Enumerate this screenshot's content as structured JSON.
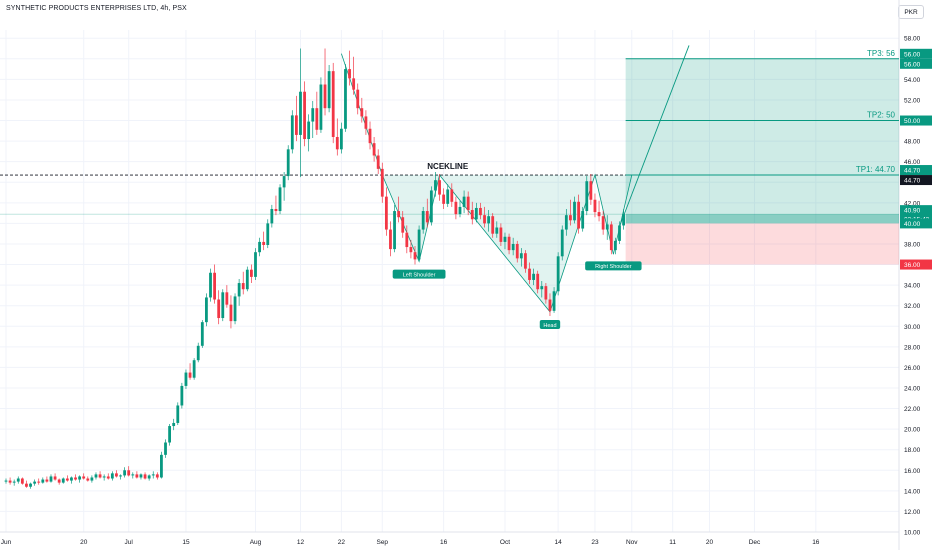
{
  "header": {
    "title": "SYNTHETIC PRODUCTS ENTERPRISES LTD, 4h, PSX",
    "currency": "PKR"
  },
  "chart_data": {
    "type": "candlestick",
    "y_ticks": [
      "58.00",
      "56.00",
      "54.00",
      "52.00",
      "50.00",
      "48.00",
      "46.00",
      "44.00",
      "42.00",
      "40.00",
      "38.00",
      "36.00",
      "34.00",
      "32.00",
      "30.00",
      "28.00",
      "26.00",
      "24.00",
      "22.00",
      "20.00",
      "18.00",
      "16.00",
      "14.00",
      "12.00",
      "10.00"
    ],
    "ylim": [
      10,
      58.8
    ],
    "x_ticks": [
      {
        "label": "Jun",
        "day": 0
      },
      {
        "label": "20",
        "day": 19
      },
      {
        "label": "Jul",
        "day": 30
      },
      {
        "label": "15",
        "day": 44
      },
      {
        "label": "Aug",
        "day": 61
      },
      {
        "label": "12",
        "day": 72
      },
      {
        "label": "22",
        "day": 82
      },
      {
        "label": "Sep",
        "day": 92
      },
      {
        "label": "16",
        "day": 107
      },
      {
        "label": "Oct",
        "day": 122
      },
      {
        "label": "14",
        "day": 135
      },
      {
        "label": "23",
        "day": 144
      },
      {
        "label": "Nov",
        "day": 153
      },
      {
        "label": "11",
        "day": 163
      },
      {
        "label": "20",
        "day": 172
      },
      {
        "label": "Dec",
        "day": 183
      },
      {
        "label": "16",
        "day": 198
      }
    ],
    "price_labels": [
      {
        "value": 56.0,
        "text": "56.00",
        "color": "#089981",
        "offset": -5
      },
      {
        "value": 56.0,
        "text": "56.00",
        "color": "#089981",
        "offset": 5
      },
      {
        "value": 50.0,
        "text": "50.00",
        "color": "#089981",
        "offset": 0
      },
      {
        "value": 44.7,
        "text": "44.70",
        "color": "#089981",
        "offset": -5
      },
      {
        "value": 44.7,
        "text": "44.70",
        "color": "#131722",
        "offset": 5
      },
      {
        "value": 40.9,
        "text": "40.90",
        "color": "#089981",
        "offset": -4
      },
      {
        "value": 40.9,
        "text": "03:15:43",
        "color": "#089981",
        "offset": 5
      },
      {
        "value": 40.0,
        "text": "40.00",
        "color": "#089981",
        "offset": 0
      },
      {
        "value": 36.0,
        "text": "36.00",
        "color": "#f23645",
        "offset": 0
      }
    ],
    "targets": [
      {
        "label": "TP3: 56",
        "value": 56
      },
      {
        "label": "TP2: 50",
        "value": 50
      },
      {
        "label": "TP1: 44.70",
        "value": 44.7
      }
    ],
    "neckline": {
      "label": "NCEKLINE",
      "value": 44.7
    },
    "pattern_labels": [
      {
        "text": "Left Shoulder",
        "day": 101,
        "value": 35.9
      },
      {
        "text": "Head",
        "day": 133,
        "value": 31.0
      },
      {
        "text": "Right Shoulder",
        "day": 148.5,
        "value": 36.7
      }
    ],
    "pattern_path": [
      [
        92,
        44.7
      ],
      [
        101,
        36.3
      ],
      [
        106,
        44.7
      ],
      [
        133,
        31.4
      ],
      [
        144,
        44.7
      ],
      [
        148.5,
        37.0
      ],
      [
        153,
        44.7
      ]
    ],
    "projection": [
      [
        150,
        39.7
      ],
      [
        167,
        57.3
      ]
    ],
    "position": {
      "entry": 40.0,
      "target": 56.0,
      "stop": 36.0,
      "start_day": 151.5,
      "end_day": 225
    },
    "last_price": 40.9,
    "candles": [
      [
        0,
        14.9,
        15.2,
        14.7,
        15.0
      ],
      [
        1,
        15.0,
        15.3,
        14.6,
        14.8
      ],
      [
        2,
        14.8,
        15.1,
        14.5,
        14.9
      ],
      [
        3,
        14.9,
        15.4,
        14.7,
        15.2
      ],
      [
        4,
        15.2,
        15.3,
        14.6,
        14.7
      ],
      [
        5,
        14.7,
        15.0,
        14.3,
        14.4
      ],
      [
        6,
        14.4,
        14.8,
        14.2,
        14.7
      ],
      [
        7,
        14.7,
        15.1,
        14.5,
        14.9
      ],
      [
        8,
        14.9,
        15.2,
        14.6,
        14.8
      ],
      [
        9,
        14.8,
        15.3,
        14.7,
        15.1
      ],
      [
        10,
        15.1,
        15.4,
        14.8,
        14.9
      ],
      [
        11,
        14.9,
        15.6,
        14.8,
        15.4
      ],
      [
        12,
        15.4,
        15.7,
        15.0,
        15.1
      ],
      [
        13,
        15.1,
        15.2,
        14.6,
        14.8
      ],
      [
        14,
        14.8,
        15.3,
        14.7,
        15.2
      ],
      [
        15,
        15.2,
        15.5,
        14.9,
        15.0
      ],
      [
        16,
        15.0,
        15.4,
        14.7,
        15.3
      ],
      [
        17,
        15.3,
        15.6,
        15.0,
        15.1
      ],
      [
        18,
        15.1,
        15.5,
        14.8,
        15.4
      ],
      [
        19,
        15.4,
        15.7,
        15.1,
        15.2
      ],
      [
        20,
        15.2,
        15.4,
        14.9,
        15.0
      ],
      [
        21,
        15.0,
        15.5,
        14.8,
        15.3
      ],
      [
        22,
        15.3,
        15.8,
        15.1,
        15.6
      ],
      [
        23,
        15.6,
        15.9,
        15.2,
        15.3
      ],
      [
        24,
        15.3,
        15.6,
        15.0,
        15.4
      ],
      [
        25,
        15.4,
        15.7,
        15.1,
        15.2
      ],
      [
        26,
        15.2,
        15.9,
        15.0,
        15.7
      ],
      [
        27,
        15.7,
        16.0,
        15.3,
        15.4
      ],
      [
        28,
        15.4,
        15.6,
        15.1,
        15.5
      ],
      [
        29,
        15.5,
        16.3,
        15.3,
        16.0
      ],
      [
        30,
        16.0,
        16.4,
        15.4,
        15.5
      ],
      [
        31,
        15.5,
        15.8,
        15.2,
        15.6
      ],
      [
        32,
        15.6,
        15.9,
        15.2,
        15.3
      ],
      [
        33,
        15.3,
        15.7,
        15.1,
        15.6
      ],
      [
        34,
        15.6,
        15.8,
        15.1,
        15.2
      ],
      [
        35,
        15.2,
        15.6,
        15.0,
        15.5
      ],
      [
        36,
        15.5,
        15.9,
        15.2,
        15.6
      ],
      [
        37,
        15.6,
        15.8,
        15.1,
        15.3
      ],
      [
        38,
        15.3,
        17.8,
        15.2,
        17.5
      ],
      [
        39,
        17.5,
        19.0,
        17.2,
        18.7
      ],
      [
        40,
        18.7,
        20.5,
        18.4,
        20.3
      ],
      [
        41,
        20.3,
        21.0,
        19.9,
        20.6
      ],
      [
        42,
        20.6,
        22.6,
        20.4,
        22.3
      ],
      [
        43,
        22.3,
        24.5,
        22.0,
        24.2
      ],
      [
        44,
        24.2,
        25.8,
        23.9,
        25.5
      ],
      [
        45,
        25.5,
        26.4,
        24.8,
        25.0
      ],
      [
        46,
        25.0,
        26.9,
        24.8,
        26.7
      ],
      [
        47,
        26.7,
        28.4,
        26.5,
        28.1
      ],
      [
        48,
        28.1,
        30.6,
        27.9,
        30.4
      ],
      [
        49,
        30.4,
        33.2,
        30.0,
        32.8
      ],
      [
        50,
        32.8,
        35.6,
        32.4,
        35.2
      ],
      [
        51,
        35.2,
        36.0,
        32.2,
        32.6
      ],
      [
        52,
        32.6,
        33.5,
        30.2,
        30.8
      ],
      [
        53,
        30.8,
        33.6,
        30.5,
        33.3
      ],
      [
        54,
        33.3,
        34.0,
        31.8,
        32.1
      ],
      [
        55,
        32.1,
        33.0,
        29.8,
        30.5
      ],
      [
        56,
        30.5,
        33.2,
        30.2,
        32.9
      ],
      [
        57,
        32.9,
        34.6,
        32.0,
        34.2
      ],
      [
        58,
        34.2,
        35.3,
        33.1,
        33.6
      ],
      [
        59,
        33.6,
        35.8,
        33.4,
        35.5
      ],
      [
        60,
        35.5,
        36.0,
        34.2,
        34.8
      ],
      [
        61,
        34.8,
        37.6,
        34.5,
        37.2
      ],
      [
        62,
        37.2,
        38.6,
        36.8,
        38.2
      ],
      [
        63,
        38.2,
        39.2,
        37.4,
        37.9
      ],
      [
        64,
        37.9,
        40.4,
        37.6,
        40.0
      ],
      [
        65,
        40.0,
        41.8,
        39.6,
        41.4
      ],
      [
        66,
        41.4,
        42.7,
        40.8,
        41.2
      ],
      [
        67,
        41.2,
        43.8,
        40.9,
        43.5
      ],
      [
        68,
        43.5,
        45.0,
        42.2,
        44.6
      ],
      [
        69,
        44.6,
        47.6,
        44.2,
        47.2
      ],
      [
        70,
        47.2,
        51.0,
        46.8,
        50.5
      ],
      [
        71,
        50.5,
        52.4,
        48.0,
        48.6
      ],
      [
        72,
        48.6,
        57.0,
        44.5,
        52.8
      ],
      [
        73,
        52.8,
        53.8,
        47.5,
        48.2
      ],
      [
        74,
        48.2,
        50.6,
        47.0,
        49.9
      ],
      [
        75,
        49.9,
        51.9,
        48.3,
        51.2
      ],
      [
        76,
        51.2,
        52.8,
        48.6,
        49.1
      ],
      [
        77,
        49.1,
        54.2,
        48.8,
        53.5
      ],
      [
        78,
        53.5,
        57.0,
        50.5,
        51.2
      ],
      [
        79,
        51.2,
        55.4,
        50.8,
        54.8
      ],
      [
        80,
        54.8,
        55.6,
        47.8,
        48.4
      ],
      [
        81,
        48.4,
        50.2,
        46.6,
        47.2
      ],
      [
        82,
        47.2,
        49.8,
        46.8,
        49.2
      ],
      [
        83,
        49.2,
        55.5,
        48.9,
        55.0
      ],
      [
        84,
        55.0,
        56.8,
        53.4,
        54.1
      ],
      [
        85,
        54.1,
        56.2,
        52.5,
        53.0
      ],
      [
        86,
        53.0,
        53.6,
        50.6,
        51.2
      ],
      [
        87,
        51.2,
        52.2,
        49.8,
        50.4
      ],
      [
        88,
        50.4,
        51.0,
        48.6,
        49.2
      ],
      [
        89,
        49.2,
        49.9,
        47.2,
        47.8
      ],
      [
        90,
        47.8,
        48.4,
        46.0,
        46.6
      ],
      [
        91,
        46.6,
        47.2,
        44.8,
        45.3
      ],
      [
        92,
        45.3,
        45.9,
        42.0,
        42.6
      ],
      [
        93,
        42.6,
        43.5,
        38.8,
        39.4
      ],
      [
        94,
        39.4,
        40.2,
        36.8,
        37.5
      ],
      [
        95,
        37.5,
        41.8,
        37.2,
        41.2
      ],
      [
        96,
        41.2,
        42.6,
        40.1,
        40.6
      ],
      [
        97,
        40.6,
        41.2,
        38.6,
        39.1
      ],
      [
        98,
        39.1,
        39.8,
        37.1,
        37.7
      ],
      [
        99,
        37.7,
        38.4,
        36.6,
        37.2
      ],
      [
        100,
        37.2,
        37.8,
        36.0,
        36.5
      ],
      [
        101,
        36.5,
        39.8,
        36.3,
        39.4
      ],
      [
        102,
        39.4,
        41.6,
        39.0,
        41.2
      ],
      [
        103,
        41.2,
        42.4,
        39.6,
        40.1
      ],
      [
        104,
        40.1,
        43.6,
        39.8,
        43.2
      ],
      [
        105,
        43.2,
        45.0,
        42.6,
        44.2
      ],
      [
        106,
        44.2,
        44.8,
        42.2,
        42.8
      ],
      [
        107,
        42.8,
        43.4,
        41.4,
        41.9
      ],
      [
        108,
        41.9,
        43.8,
        41.6,
        43.3
      ],
      [
        109,
        43.3,
        43.9,
        41.6,
        42.1
      ],
      [
        110,
        42.1,
        42.6,
        40.4,
        40.9
      ],
      [
        111,
        40.9,
        42.2,
        40.6,
        41.6
      ],
      [
        112,
        41.6,
        43.2,
        41.0,
        42.6
      ],
      [
        113,
        42.6,
        43.1,
        40.8,
        41.3
      ],
      [
        114,
        41.3,
        42.1,
        39.9,
        40.4
      ],
      [
        115,
        40.4,
        42.0,
        40.1,
        41.5
      ],
      [
        116,
        41.5,
        42.0,
        40.4,
        40.8
      ],
      [
        117,
        40.8,
        41.6,
        39.6,
        40.0
      ],
      [
        118,
        40.0,
        41.3,
        39.2,
        40.7
      ],
      [
        119,
        40.7,
        41.0,
        38.6,
        39.0
      ],
      [
        120,
        39.0,
        40.2,
        38.6,
        39.6
      ],
      [
        121,
        39.6,
        40.0,
        37.8,
        38.2
      ],
      [
        122,
        38.2,
        39.1,
        37.5,
        38.7
      ],
      [
        123,
        38.7,
        39.0,
        37.0,
        37.4
      ],
      [
        124,
        37.4,
        38.6,
        36.9,
        38.0
      ],
      [
        125,
        38.0,
        38.3,
        36.2,
        36.6
      ],
      [
        126,
        36.6,
        37.6,
        35.8,
        37.1
      ],
      [
        127,
        37.1,
        37.4,
        35.2,
        35.6
      ],
      [
        128,
        35.6,
        36.2,
        34.1,
        34.5
      ],
      [
        129,
        34.5,
        35.6,
        34.0,
        35.1
      ],
      [
        130,
        35.1,
        35.4,
        33.2,
        33.6
      ],
      [
        131,
        33.6,
        34.4,
        32.8,
        33.9
      ],
      [
        132,
        33.9,
        34.2,
        32.2,
        32.6
      ],
      [
        133,
        32.6,
        33.2,
        31.0,
        31.5
      ],
      [
        134,
        31.5,
        33.8,
        31.3,
        33.4
      ],
      [
        135,
        33.4,
        37.2,
        33.0,
        36.8
      ],
      [
        136,
        36.8,
        39.8,
        36.4,
        39.4
      ],
      [
        137,
        39.4,
        41.4,
        38.8,
        40.8
      ],
      [
        138,
        40.8,
        42.3,
        39.8,
        40.3
      ],
      [
        139,
        40.3,
        42.6,
        40.0,
        42.1
      ],
      [
        140,
        42.1,
        42.8,
        39.0,
        39.5
      ],
      [
        141,
        39.5,
        41.6,
        39.2,
        41.2
      ],
      [
        142,
        41.2,
        44.6,
        40.8,
        44.1
      ],
      [
        143,
        44.1,
        44.8,
        41.8,
        42.3
      ],
      [
        144,
        42.3,
        42.9,
        40.6,
        41.1
      ],
      [
        145,
        41.1,
        42.2,
        40.2,
        40.7
      ],
      [
        146,
        40.7,
        41.2,
        38.9,
        39.4
      ],
      [
        147,
        39.4,
        40.8,
        38.4,
        39.9
      ],
      [
        148,
        39.9,
        40.2,
        37.0,
        37.4
      ],
      [
        149,
        37.4,
        38.6,
        37.0,
        38.3
      ],
      [
        150,
        38.3,
        40.2,
        38.0,
        39.8
      ],
      [
        151,
        39.8,
        41.4,
        39.4,
        40.9
      ]
    ]
  }
}
